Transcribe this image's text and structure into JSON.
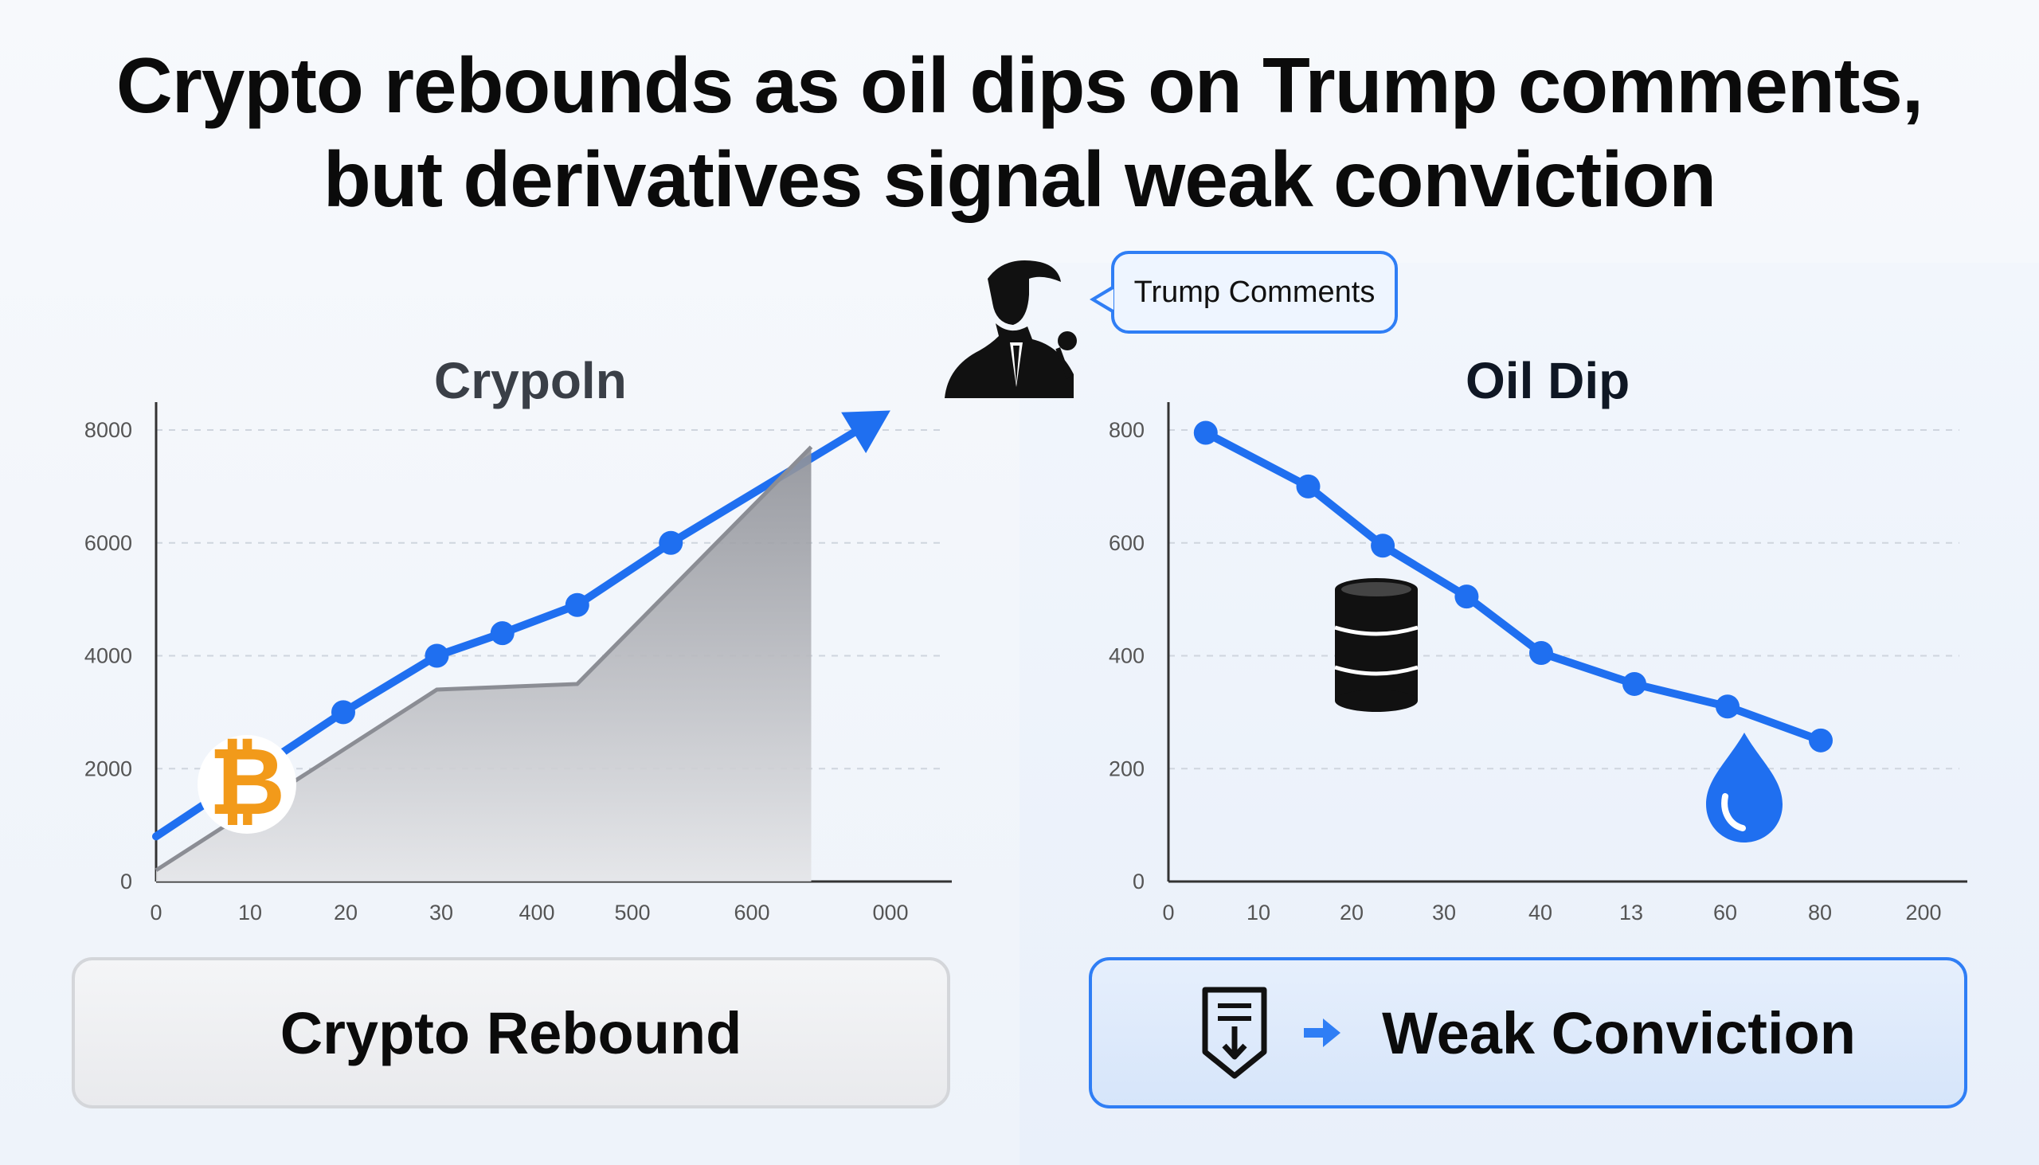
{
  "headline": {
    "line1": "Crypto rebounds as oil dips on Trump comments,",
    "line2": "but derivatives signal weak conviction"
  },
  "speech_bubble": "Trump Comments",
  "colors": {
    "accent_blue": "#1f6ff0",
    "gray_area": "#9a9ca3",
    "bitcoin_orange": "#f29a1a",
    "oil_black": "#111111"
  },
  "icons": [
    "speaker-silhouette-icon",
    "bitcoin-icon",
    "oil-barrel-icon",
    "water-drop-icon",
    "document-download-icon",
    "arrow-right-icon"
  ],
  "chart_data": [
    {
      "type": "line",
      "title": "Crypoln",
      "x_tick_labels": [
        "0",
        "10",
        "20",
        "30",
        "400",
        "500",
        "600",
        "000"
      ],
      "y_ticks": [
        0,
        2000,
        4000,
        6000,
        8000
      ],
      "ylim": [
        0,
        8000
      ],
      "grid": true,
      "series": [
        {
          "style": "line-with-markers-and-arrow",
          "x_index": [
            0,
            2,
            3,
            3.7,
            4.5,
            5.5,
            7.7
          ],
          "values": [
            800,
            3000,
            4000,
            4400,
            4900,
            6000,
            8200
          ]
        },
        {
          "style": "gray-area",
          "x_index": [
            0,
            3,
            4.5,
            7
          ],
          "values": [
            200,
            3400,
            3500,
            7700
          ]
        }
      ]
    },
    {
      "type": "line",
      "title": "Oil Dip",
      "x_tick_labels": [
        "0",
        "10",
        "20",
        "30",
        "40",
        "13",
        "60",
        "80",
        "200"
      ],
      "y_ticks": [
        0,
        200,
        400,
        600,
        800
      ],
      "ylim": [
        0,
        800
      ],
      "grid": true,
      "series": [
        {
          "style": "line-with-markers",
          "x_index": [
            0.4,
            1.5,
            2.3,
            3.2,
            4.0,
            5.0,
            6.0,
            7.0
          ],
          "values": [
            795,
            700,
            595,
            505,
            405,
            350,
            310,
            250
          ]
        }
      ]
    }
  ],
  "cards": {
    "left_label": "Crypto Rebound",
    "right_label": "Weak Conviction"
  }
}
